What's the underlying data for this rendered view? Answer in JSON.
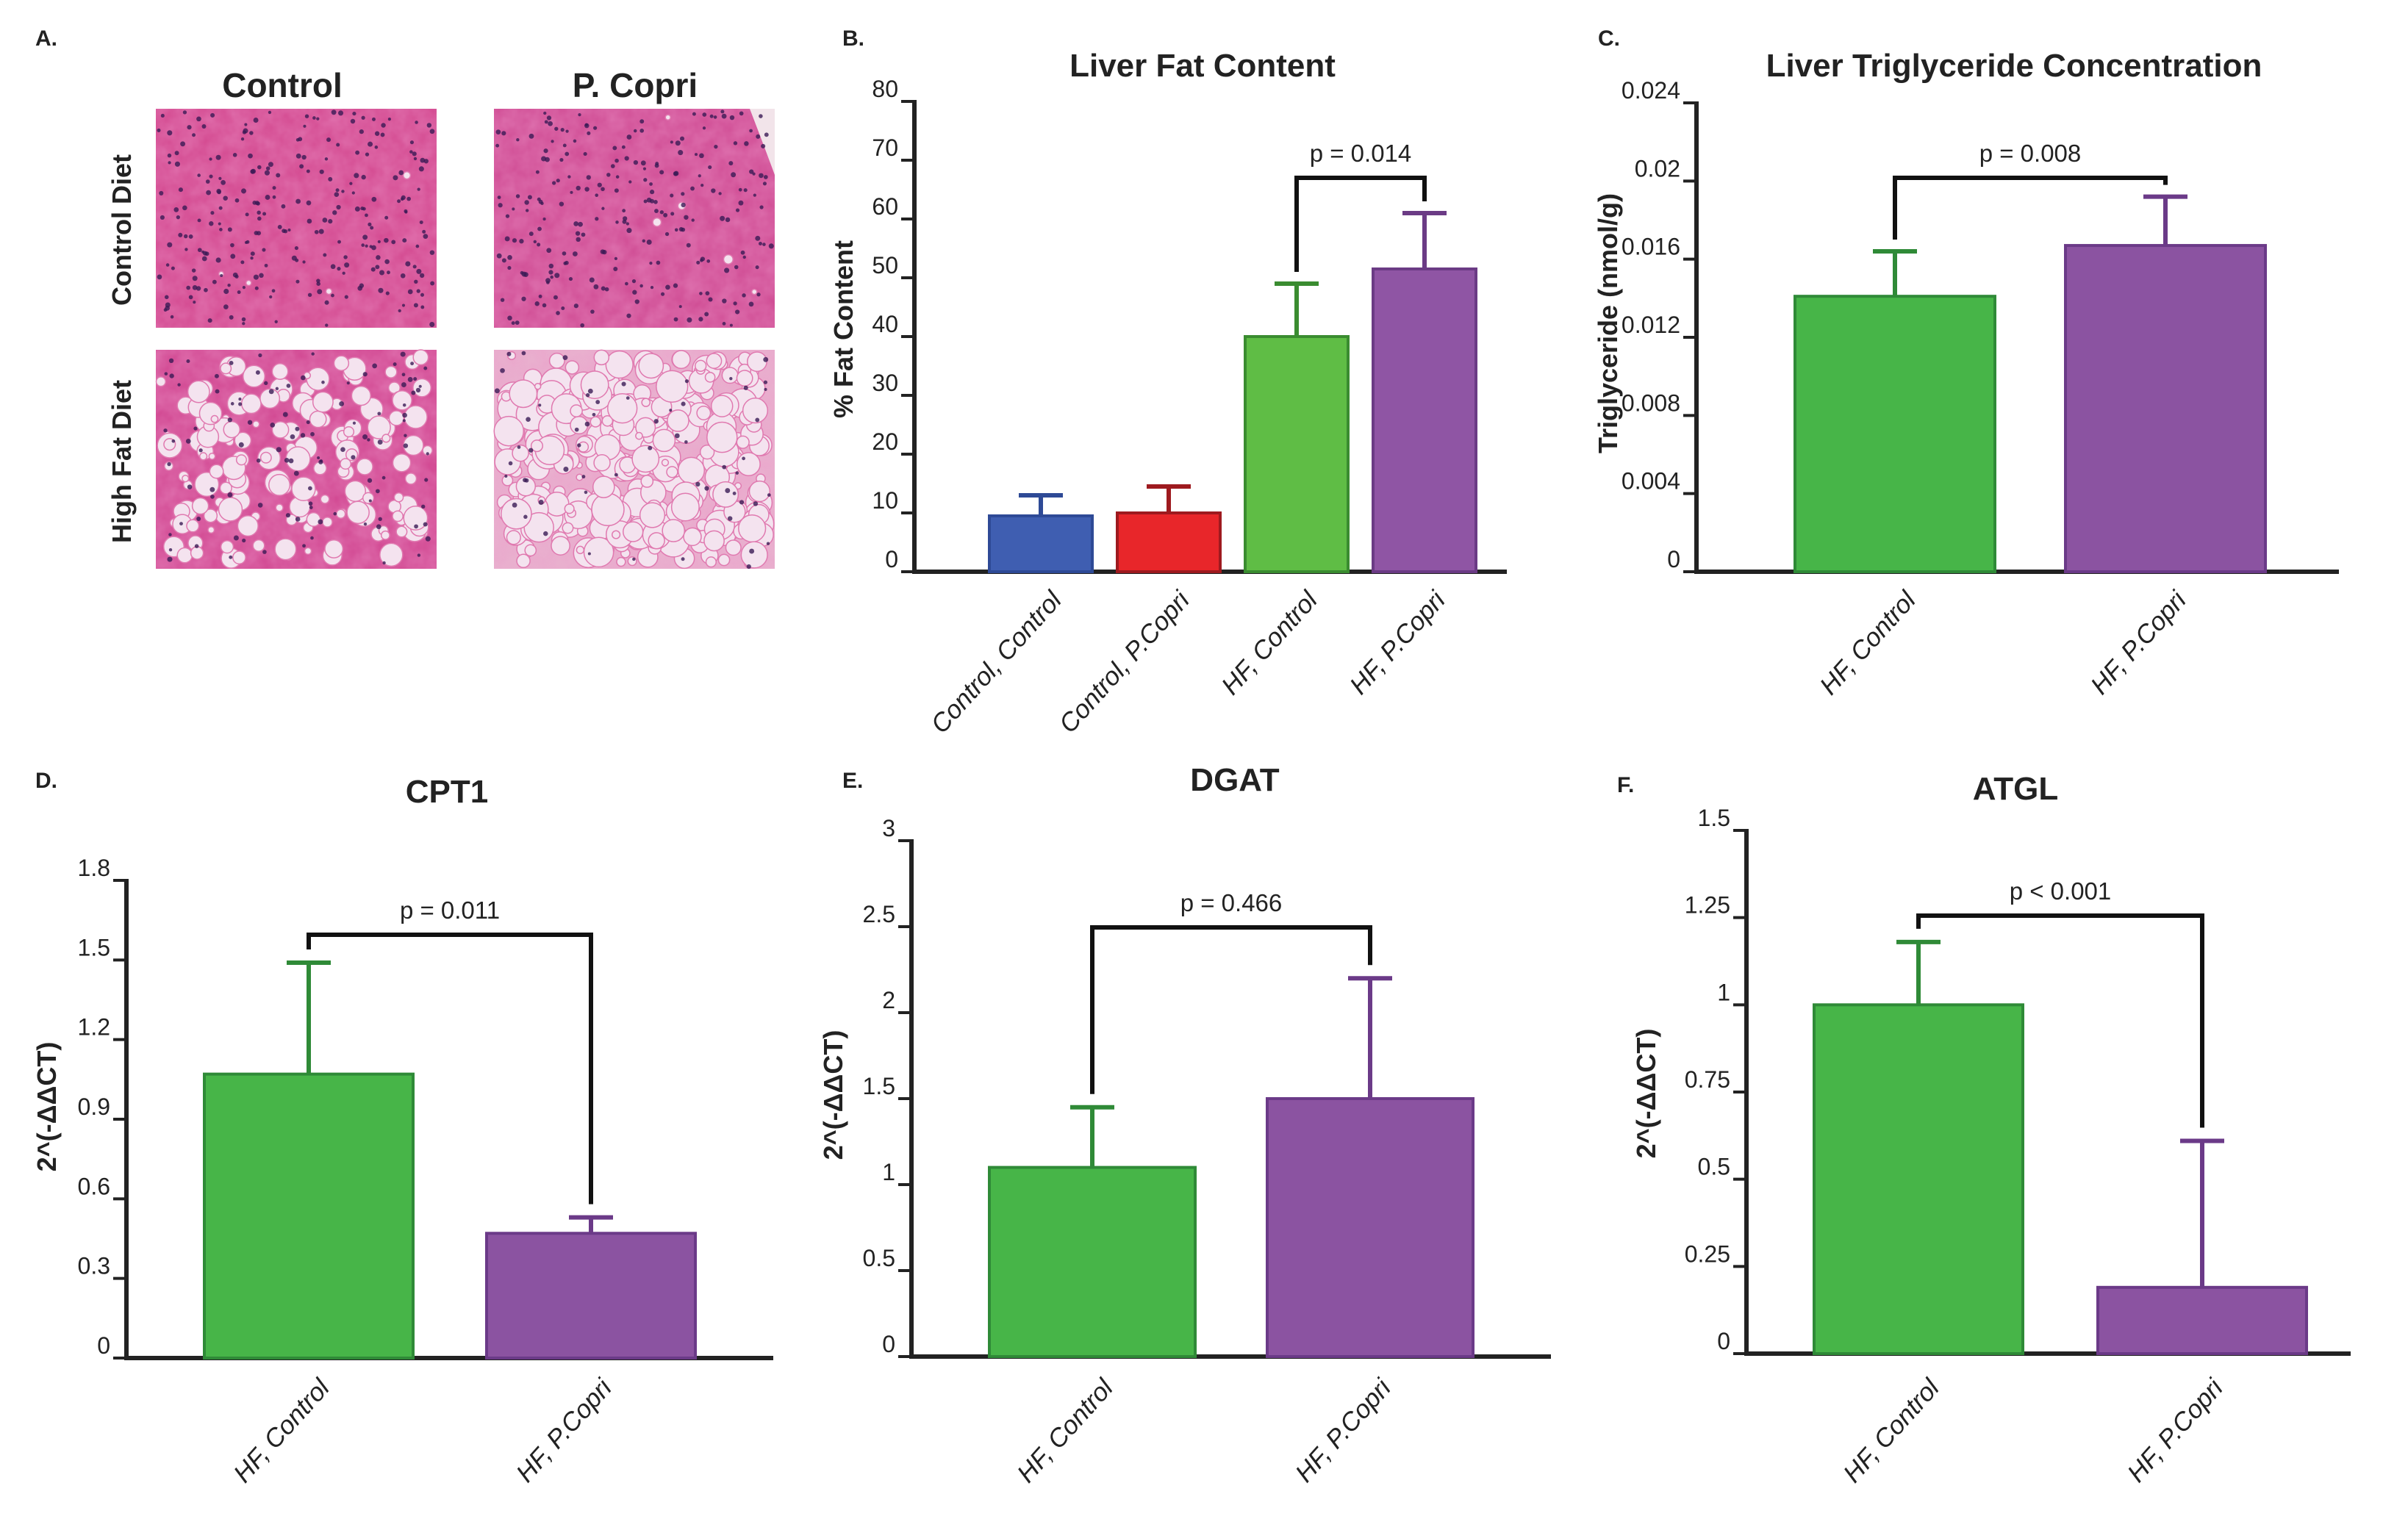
{
  "panel_a": {
    "letter": "A.",
    "col_labels": [
      "Control",
      "P. Copri"
    ],
    "row_labels": [
      "Control Diet",
      "High Fat Diet"
    ],
    "tissue_colors": {
      "base": "#d3488f",
      "light": "#e07ab0",
      "fat": "#f4e3ef",
      "nuclei": "#3a1a55"
    }
  },
  "chart_data": [
    {
      "id": "B",
      "letter": "B.",
      "type": "bar",
      "title": "Liver Fat Content",
      "ylabel": "% Fat Content",
      "xlabel": "",
      "ylim": [
        0,
        80
      ],
      "yticks": [
        0,
        10,
        20,
        30,
        40,
        50,
        60,
        70,
        80
      ],
      "ytick_labels": [
        "0",
        "10",
        "20",
        "30",
        "40",
        "50",
        "60",
        "70",
        "80"
      ],
      "categories": [
        "Control, Control",
        "Control, P.Copri",
        "HF, Control",
        "HF, P.Copri"
      ],
      "values": [
        9.5,
        10,
        40,
        51.5
      ],
      "errors": [
        3.5,
        4.5,
        9,
        9.5
      ],
      "colors": [
        "#3f5eb1",
        "#e8262a",
        "#5fbd45",
        "#8f55a4"
      ],
      "edge_colors": [
        "#2e4a96",
        "#9e1a1f",
        "#3a8c30",
        "#6b3b85"
      ],
      "comparison": {
        "between": [
          2,
          3
        ],
        "label": "p = 0.014"
      }
    },
    {
      "id": "C",
      "letter": "C.",
      "type": "bar",
      "title": "Liver Triglyceride Concentration",
      "ylabel": "Triglyceride (nmol/g)",
      "xlabel": "",
      "ylim": [
        0,
        0.024
      ],
      "yticks": [
        0,
        0.004,
        0.008,
        0.012,
        0.016,
        0.02,
        0.024
      ],
      "ytick_labels": [
        "0",
        "0.004",
        "0.008",
        "0.012",
        "0.016",
        "0.02",
        "0.024"
      ],
      "categories": [
        "HF, Control",
        "HF, P.Copri"
      ],
      "values": [
        0.0141,
        0.0167
      ],
      "errors": [
        0.0023,
        0.0025
      ],
      "colors": [
        "#47b548",
        "#8b53a1"
      ],
      "edge_colors": [
        "#2f8a37",
        "#6b3a88"
      ],
      "comparison": {
        "between": [
          0,
          1
        ],
        "label": "p = 0.008"
      }
    },
    {
      "id": "D",
      "letter": "D.",
      "type": "bar",
      "title": "CPT1",
      "ylabel": "2^(-ΔΔCT)",
      "xlabel": "",
      "ylim": [
        0,
        1.8
      ],
      "yticks": [
        0,
        0.3,
        0.6,
        0.9,
        1.2,
        1.5,
        1.8
      ],
      "ytick_labels": [
        "0",
        "0.3",
        "0.6",
        "0.9",
        "1.2",
        "1.5",
        "1.8"
      ],
      "categories": [
        "HF, Control",
        "HF, P.Copri"
      ],
      "values": [
        1.07,
        0.47
      ],
      "errors": [
        0.42,
        0.06
      ],
      "colors": [
        "#47b548",
        "#8b53a1"
      ],
      "edge_colors": [
        "#2f8a37",
        "#6b3a88"
      ],
      "comparison": {
        "between": [
          0,
          1
        ],
        "label": "p = 0.011"
      }
    },
    {
      "id": "E",
      "letter": "E.",
      "type": "bar",
      "title": "DGAT",
      "ylabel": "2^(-ΔΔCT)",
      "xlabel": "",
      "ylim": [
        0,
        3
      ],
      "yticks": [
        0,
        0.5,
        1,
        1.5,
        2,
        2.5,
        3
      ],
      "ytick_labels": [
        "0",
        "0.5",
        "1",
        "1.5",
        "2",
        "2.5",
        "3"
      ],
      "categories": [
        "HF, Control",
        "HF, P.Copri"
      ],
      "values": [
        1.1,
        1.5
      ],
      "errors": [
        0.35,
        0.7
      ],
      "colors": [
        "#47b548",
        "#8b53a1"
      ],
      "edge_colors": [
        "#2f8a37",
        "#6b3a88"
      ],
      "comparison": {
        "between": [
          0,
          1
        ],
        "label": "p = 0.466"
      }
    },
    {
      "id": "F",
      "letter": "F.",
      "type": "bar",
      "title": "ATGL",
      "ylabel": "2^(-ΔΔCT)",
      "xlabel": "",
      "ylim": [
        0,
        1.5
      ],
      "yticks": [
        0,
        0.25,
        0.5,
        0.75,
        1,
        1.25,
        1.5
      ],
      "ytick_labels": [
        "0",
        "0.25",
        "0.5",
        "0.75",
        "1",
        "1.25",
        "1.5"
      ],
      "categories": [
        "HF, Control",
        "HF, P.Copri"
      ],
      "values": [
        1.0,
        0.19
      ],
      "errors": [
        0.18,
        0.42
      ],
      "colors": [
        "#47b548",
        "#8b53a1"
      ],
      "edge_colors": [
        "#2f8a37",
        "#6b3a88"
      ],
      "comparison": {
        "between": [
          0,
          1
        ],
        "label": "p < 0.001"
      }
    }
  ]
}
